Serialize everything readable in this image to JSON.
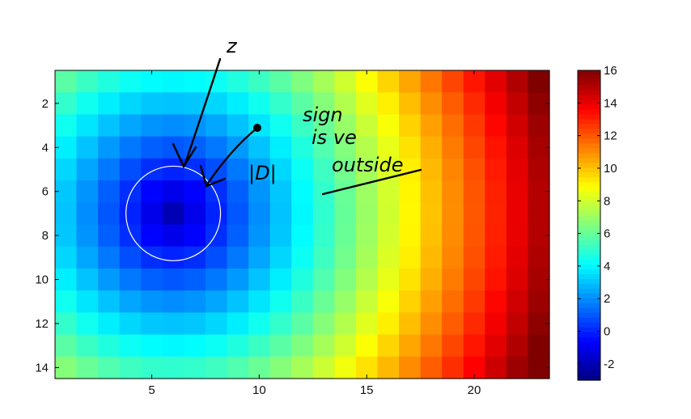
{
  "chart_data": {
    "type": "heatmap",
    "title": "",
    "xlabel": "",
    "ylabel": "",
    "cols": 23,
    "rows": 14,
    "xlim": [
      0.5,
      23.5
    ],
    "ylim": [
      0.5,
      14.5
    ],
    "y_reversed": true,
    "x_ticks": [
      5,
      10,
      15,
      20
    ],
    "y_ticks": [
      2,
      4,
      6,
      8,
      10,
      12,
      14
    ],
    "colormap": "jet",
    "color_range": [
      -3,
      16
    ],
    "colorbar_ticks": [
      -2,
      0,
      2,
      4,
      6,
      8,
      10,
      12,
      14,
      16
    ],
    "field": "signed distance to circle: sqrt((x-6)^2+(y-7)^2) - 2",
    "circle": {
      "center_x": 6,
      "center_y": 7,
      "radius": 2.2,
      "color": "#ffffff"
    },
    "annotations": {
      "z_label": "z",
      "d_label": "|D|",
      "note_line1": "sign",
      "note_line2": "is ve",
      "note_line3": "outside"
    }
  }
}
